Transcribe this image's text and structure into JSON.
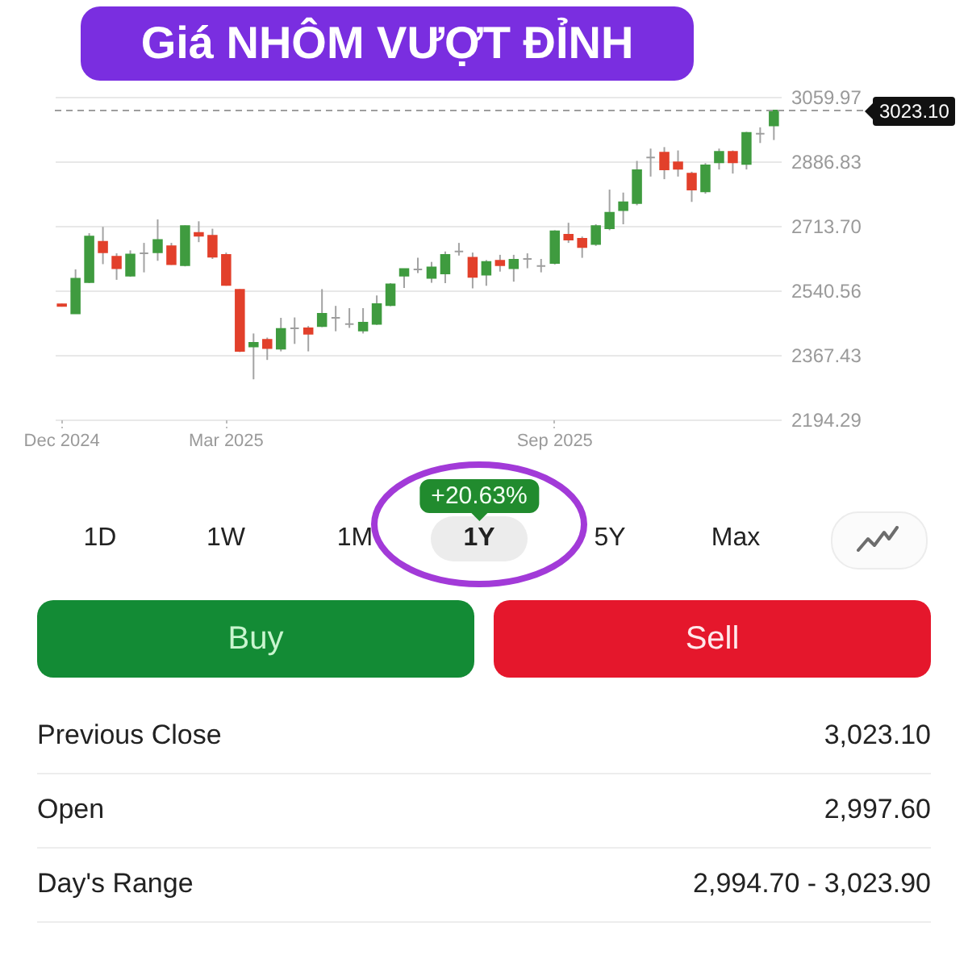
{
  "chart_data": {
    "type": "candlestick",
    "title": "Giá NHÔM VƯỢT ĐỈNH",
    "categories": [
      "Dec 2024",
      null,
      null,
      null,
      null,
      null,
      null,
      null,
      null,
      null,
      null,
      null,
      "Mar 2025",
      null,
      null,
      null,
      null,
      null,
      null,
      null,
      null,
      null,
      null,
      null,
      null,
      null,
      null,
      null,
      null,
      null,
      null,
      null,
      null,
      null,
      null,
      null,
      "Sep 2025",
      null,
      null,
      null,
      null,
      null,
      null,
      null,
      null,
      null,
      null,
      null,
      null,
      null,
      null,
      null,
      null
    ],
    "ohlc": [
      [
        2503,
        2505,
        2497,
        2499
      ],
      [
        2479,
        2597,
        2479,
        2572
      ],
      [
        2563,
        2694,
        2560,
        2685
      ],
      [
        2671,
        2711,
        2611,
        2643
      ],
      [
        2631,
        2640,
        2569,
        2600
      ],
      [
        2580,
        2648,
        2577,
        2637
      ],
      [
        2640,
        2668,
        2589,
        2640
      ],
      [
        2643,
        2731,
        2620,
        2676
      ],
      [
        2659,
        2668,
        2609,
        2611
      ],
      [
        2608,
        2715,
        2605,
        2713
      ],
      [
        2695,
        2726,
        2670,
        2687
      ],
      [
        2687,
        2706,
        2625,
        2631
      ],
      [
        2636,
        2642,
        2553,
        2555
      ],
      [
        2542,
        2544,
        2375,
        2378
      ],
      [
        2390,
        2425,
        2302,
        2400
      ],
      [
        2408,
        2414,
        2354,
        2386
      ],
      [
        2384,
        2467,
        2377,
        2437
      ],
      [
        2439,
        2468,
        2397,
        2439
      ],
      [
        2439,
        2445,
        2377,
        2424
      ],
      [
        2445,
        2544,
        2442,
        2478
      ],
      [
        2467,
        2499,
        2431,
        2467
      ],
      [
        2450,
        2493,
        2440,
        2450
      ],
      [
        2433,
        2493,
        2425,
        2454
      ],
      [
        2451,
        2527,
        2448,
        2504
      ],
      [
        2501,
        2560,
        2498,
        2557
      ],
      [
        2580,
        2598,
        2547,
        2598
      ],
      [
        2597,
        2628,
        2587,
        2597
      ],
      [
        2574,
        2617,
        2561,
        2602
      ],
      [
        2586,
        2645,
        2560,
        2636
      ],
      [
        2645,
        2668,
        2634,
        2645
      ],
      [
        2628,
        2642,
        2546,
        2577
      ],
      [
        2583,
        2622,
        2553,
        2617
      ],
      [
        2620,
        2636,
        2591,
        2608
      ],
      [
        2600,
        2636,
        2564,
        2623
      ],
      [
        2625,
        2640,
        2600,
        2625
      ],
      [
        2606,
        2625,
        2589,
        2606
      ],
      [
        2614,
        2702,
        2610,
        2699
      ],
      [
        2690,
        2722,
        2668,
        2677
      ],
      [
        2679,
        2685,
        2628,
        2657
      ],
      [
        2665,
        2718,
        2660,
        2713
      ],
      [
        2707,
        2811,
        2702,
        2749
      ],
      [
        2756,
        2803,
        2718,
        2777
      ],
      [
        2775,
        2888,
        2769,
        2863
      ],
      [
        2897,
        2921,
        2846,
        2897
      ],
      [
        2910,
        2925,
        2839,
        2865
      ],
      [
        2884,
        2916,
        2846,
        2867
      ],
      [
        2854,
        2859,
        2778,
        2811
      ],
      [
        2806,
        2882,
        2800,
        2876
      ],
      [
        2884,
        2921,
        2865,
        2912
      ],
      [
        2912,
        2916,
        2854,
        2884
      ],
      [
        2880,
        2966,
        2865,
        2963
      ],
      [
        2961,
        2978,
        2936,
        2961
      ],
      [
        2983,
        3024,
        2944,
        3023.1
      ]
    ],
    "colors": [
      "#e2402b",
      "#3f9b3f",
      "#3f9b3f",
      "#e2402b",
      "#e2402b",
      "#3f9b3f",
      "#9e9e9e",
      "#3f9b3f",
      "#e2402b",
      "#3f9b3f",
      "#e2402b",
      "#e2402b",
      "#e2402b",
      "#e2402b",
      "#3f9b3f",
      "#e2402b",
      "#3f9b3f",
      "#9e9e9e",
      "#e2402b",
      "#3f9b3f",
      "#9e9e9e",
      "#9e9e9e",
      "#3f9b3f",
      "#3f9b3f",
      "#3f9b3f",
      "#3f9b3f",
      "#9e9e9e",
      "#3f9b3f",
      "#3f9b3f",
      "#9e9e9e",
      "#e2402b",
      "#3f9b3f",
      "#e2402b",
      "#3f9b3f",
      "#9e9e9e",
      "#9e9e9e",
      "#3f9b3f",
      "#e2402b",
      "#e2402b",
      "#3f9b3f",
      "#3f9b3f",
      "#3f9b3f",
      "#3f9b3f",
      "#9e9e9e",
      "#e2402b",
      "#e2402b",
      "#e2402b",
      "#3f9b3f",
      "#3f9b3f",
      "#e2402b",
      "#3f9b3f",
      "#9e9e9e",
      "#3f9b3f"
    ],
    "ylim": [
      2194.29,
      3059.97
    ],
    "yticks": [
      2194.29,
      2367.43,
      2540.56,
      {
        "value": 2713.7,
        "label": "2713.70"
      },
      2886.83,
      3059.97
    ],
    "grid": "y",
    "ref_lines": [
      {
        "axis": "y",
        "value": 3023.1,
        "label": "3023.10",
        "line_style": "dashed",
        "color": "#9e9e9e"
      }
    ],
    "annotations": [
      "+20.63%",
      "1D",
      "1W",
      "1M",
      "1Y",
      "5Y",
      "Max",
      "Buy",
      "Sell",
      "Previous Close",
      "3,023.10",
      "Open",
      "2,997.60",
      "Day's Range",
      "2,994.70 - 3,023.90"
    ]
  }
}
